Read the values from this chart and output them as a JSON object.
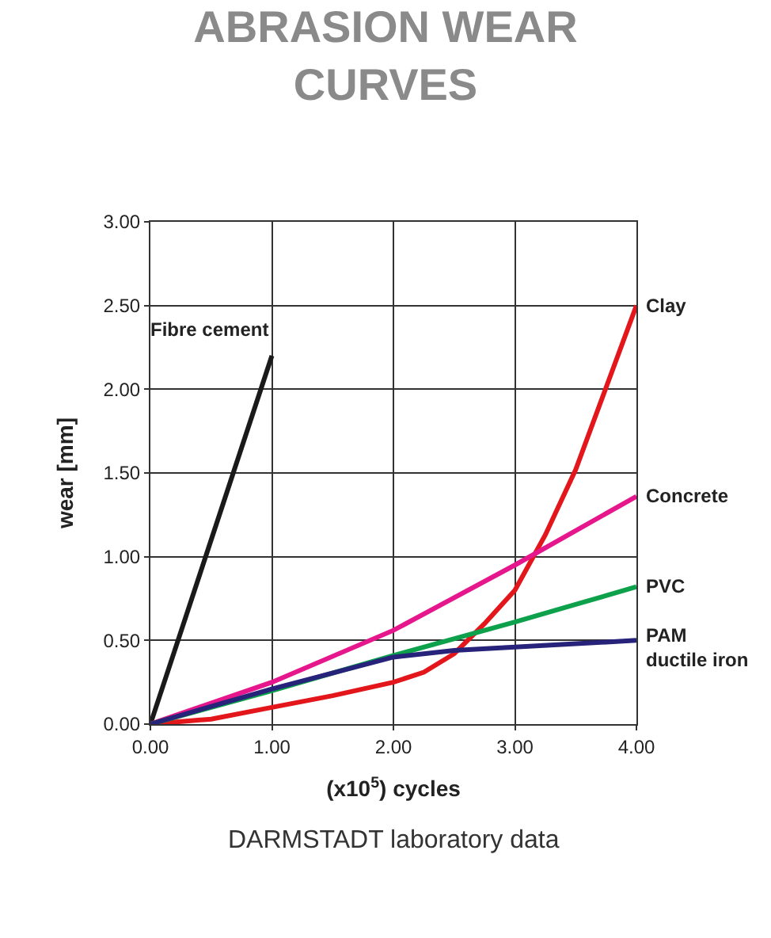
{
  "chart_data": {
    "type": "line",
    "title": "ABRASION WEAR CURVES",
    "xlabel": "(x10$^{5}$) cycles",
    "ylabel": "wear [mm]",
    "annotations": [
      "DARMSTADT laboratory data"
    ],
    "xlim": [
      0,
      4
    ],
    "ylim": [
      0,
      3
    ],
    "xticks": [
      {
        "value": 0,
        "label": "0.00"
      },
      {
        "value": 1,
        "label": "1.00"
      },
      {
        "value": 2,
        "label": "2.00"
      },
      {
        "value": 3,
        "label": "3.00"
      },
      {
        "value": 4,
        "label": "4.00"
      }
    ],
    "yticks": [
      {
        "value": 0,
        "label": "0.00"
      },
      {
        "value": 0.5,
        "label": "0.50"
      },
      {
        "value": 1,
        "label": "1.00"
      },
      {
        "value": 1.5,
        "label": "1.50"
      },
      {
        "value": 2,
        "label": "2.00"
      },
      {
        "value": 2.5,
        "label": "2.50"
      },
      {
        "value": 3,
        "label": "3.00"
      }
    ],
    "grid": true,
    "legend": false,
    "marker": "none",
    "line_style": "solid",
    "series": [
      {
        "name": "Fibre cement",
        "color": "#1a1a1a",
        "x": [
          0,
          1
        ],
        "values": [
          0,
          2.2
        ]
      },
      {
        "name": "Clay",
        "color": "#e3161b",
        "x": [
          0,
          0.5,
          1,
          1.5,
          2,
          2.25,
          2.5,
          2.75,
          3,
          3.25,
          3.5,
          3.75,
          4
        ],
        "values": [
          0,
          0.03,
          0.1,
          0.17,
          0.25,
          0.31,
          0.42,
          0.6,
          0.8,
          1.13,
          1.52,
          2.01,
          2.5
        ]
      },
      {
        "name": "Concrete",
        "color": "#e6178c",
        "x": [
          0,
          1,
          2,
          3,
          4
        ],
        "values": [
          0,
          0.25,
          0.56,
          0.95,
          1.36
        ]
      },
      {
        "name": "PVC",
        "color": "#0ea14b",
        "x": [
          0,
          1,
          2,
          3,
          4
        ],
        "values": [
          0,
          0.2,
          0.41,
          0.61,
          0.82
        ]
      },
      {
        "name": "PAM\nductile iron",
        "color": "#27237a",
        "x": [
          0,
          1,
          2,
          2.5,
          3,
          4
        ],
        "values": [
          0,
          0.21,
          0.4,
          0.44,
          0.46,
          0.5
        ]
      }
    ]
  }
}
